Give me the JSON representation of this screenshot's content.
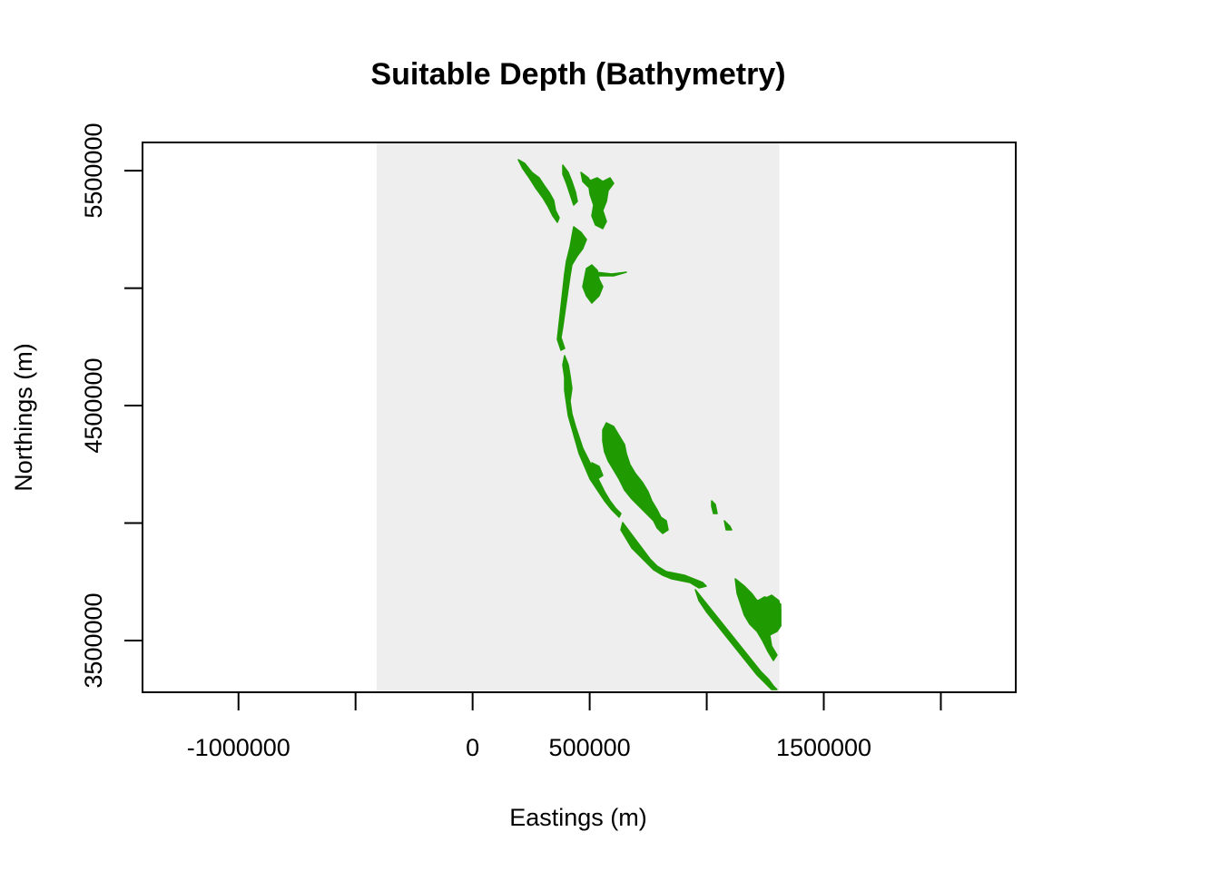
{
  "title": "Suitable Depth (Bathymetry)",
  "x_axis": {
    "label": "Eastings (m)",
    "min": -1410000,
    "max": 2320000,
    "ticks": [
      -1000000,
      -500000,
      0,
      500000,
      1000000,
      1500000,
      2000000
    ],
    "tick_labels": [
      "-1000000",
      "",
      "0",
      "500000",
      "",
      "1500000",
      ""
    ]
  },
  "y_axis": {
    "label": "Northings (m)",
    "min": 3280000,
    "max": 5620000,
    "ticks": [
      3500000,
      4000000,
      4500000,
      5000000,
      5500000
    ],
    "tick_labels": [
      "3500000",
      "",
      "4500000",
      "",
      "5500000"
    ]
  },
  "raster_extent": {
    "xmin": -410000,
    "xmax": 1310000,
    "ymin": 3280000,
    "ymax": 5620000
  },
  "colors": {
    "background_raster": "#eeeeee",
    "suitable": "#1f9a00",
    "frame": "#000000"
  },
  "map_features": [
    {
      "name": "northern-coast-fragments",
      "type": "suitable-depth-area"
    },
    {
      "name": "central-coast-strip",
      "type": "suitable-depth-area"
    },
    {
      "name": "central-offshore-bank",
      "type": "suitable-depth-area"
    },
    {
      "name": "southern-coast-fragments",
      "type": "suitable-depth-area"
    },
    {
      "name": "southeast-cluster",
      "type": "suitable-depth-area"
    }
  ]
}
